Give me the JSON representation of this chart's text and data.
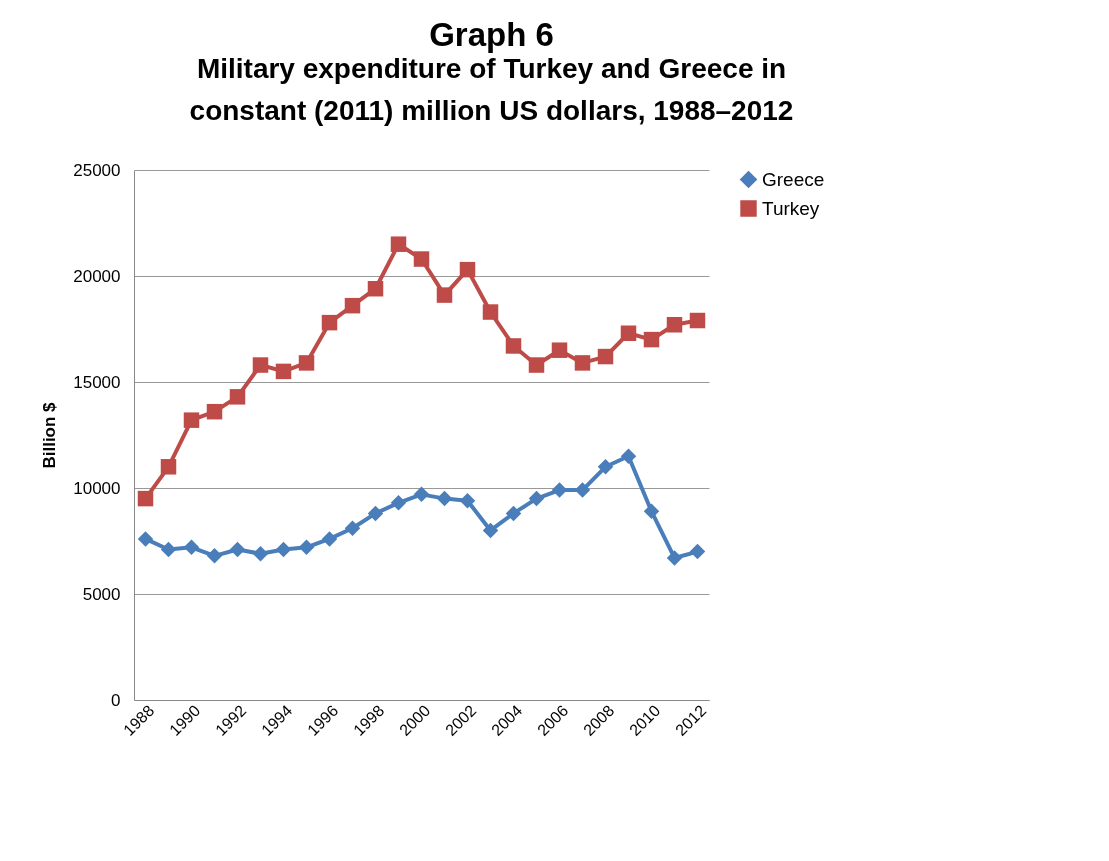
{
  "chart_data": {
    "type": "line",
    "title": "Graph 6",
    "subtitle": "Military expenditure of Turkey and Greece in constant (2011) million US dollars, 1988–2012",
    "ylabel": "Billion $",
    "categories": [
      "1988",
      null,
      "1990",
      null,
      "1992",
      null,
      "1994",
      null,
      "1996",
      null,
      "1998",
      null,
      "2000",
      null,
      "2002",
      null,
      "2004",
      null,
      "2006",
      null,
      "2008",
      null,
      "2010",
      null,
      "2012"
    ],
    "series": [
      {
        "name": "Greece",
        "color": "#4a7ebb",
        "marker": "diamond",
        "values": [
          7600,
          7100,
          7200,
          6800,
          7100,
          6900,
          7100,
          7200,
          7600,
          8100,
          8800,
          9300,
          9700,
          9500,
          9400,
          8000,
          8800,
          9500,
          9900,
          9900,
          11000,
          11500,
          8900,
          6700,
          7000
        ]
      },
      {
        "name": "Turkey",
        "color": "#be4b48",
        "marker": "square",
        "values": [
          9500,
          11000,
          13200,
          13600,
          14300,
          15800,
          15500,
          15900,
          17800,
          18600,
          19400,
          21500,
          20800,
          19100,
          20300,
          18300,
          16700,
          15800,
          16500,
          15900,
          16200,
          17300,
          17000,
          17700,
          17900
        ]
      }
    ],
    "ylim": [
      0,
      25000
    ],
    "yticks": [
      0,
      5000,
      10000,
      15000,
      20000,
      25000
    ],
    "grid": "y",
    "legend": "right"
  }
}
